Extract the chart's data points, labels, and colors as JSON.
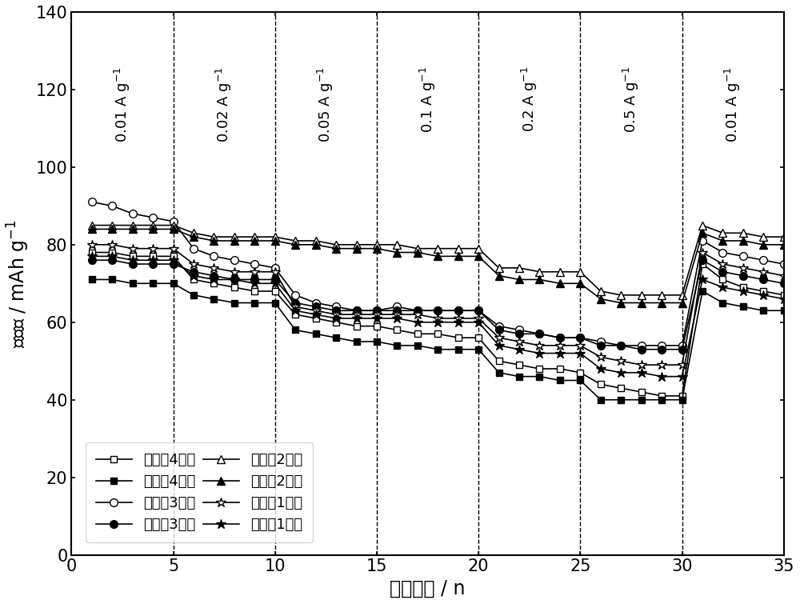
{
  "xlabel": "循环圈数 / n",
  "ylabel": "比容量 / mAh g-1",
  "ylim": [
    0,
    140
  ],
  "xlim": [
    0,
    35
  ],
  "yticks": [
    0,
    20,
    40,
    60,
    80,
    100,
    120,
    140
  ],
  "xticks": [
    0,
    5,
    10,
    15,
    20,
    25,
    30,
    35
  ],
  "vlines": [
    5,
    10,
    15,
    20,
    25,
    30
  ],
  "rate_labels": [
    {
      "x": 2.5,
      "text": "0.01 A g-1",
      "rotation": 90
    },
    {
      "x": 7.5,
      "text": "0.02 A g-1",
      "rotation": 90
    },
    {
      "x": 12.5,
      "text": "0.05 A g-1",
      "rotation": 90
    },
    {
      "x": 17.5,
      "text": "0.1 A g-1",
      "rotation": 90
    },
    {
      "x": 22.5,
      "text": "0.2 A g-1",
      "rotation": 90
    },
    {
      "x": 27.5,
      "text": "0.5 A g-1",
      "rotation": 90
    },
    {
      "x": 32.5,
      "text": "0.01 A g-1",
      "rotation": 90
    }
  ],
  "series": {
    "ex4_charge": {
      "x": [
        1,
        2,
        3,
        4,
        5,
        6,
        7,
        8,
        9,
        10,
        11,
        12,
        13,
        14,
        15,
        16,
        17,
        18,
        19,
        20,
        21,
        22,
        23,
        24,
        25,
        26,
        27,
        28,
        29,
        30,
        31,
        32,
        33,
        34,
        35
      ],
      "y": [
        78,
        78,
        77,
        77,
        77,
        71,
        70,
        69,
        68,
        68,
        62,
        61,
        60,
        59,
        59,
        58,
        57,
        57,
        56,
        56,
        50,
        49,
        48,
        48,
        47,
        44,
        43,
        42,
        41,
        41,
        75,
        71,
        69,
        68,
        67
      ],
      "marker": "s",
      "filled": false,
      "label": "实施例4充电"
    },
    "ex4_discharge": {
      "x": [
        1,
        2,
        3,
        4,
        5,
        6,
        7,
        8,
        9,
        10,
        11,
        12,
        13,
        14,
        15,
        16,
        17,
        18,
        19,
        20,
        21,
        22,
        23,
        24,
        25,
        26,
        27,
        28,
        29,
        30,
        31,
        32,
        33,
        34,
        35
      ],
      "y": [
        71,
        71,
        70,
        70,
        70,
        67,
        66,
        65,
        65,
        65,
        58,
        57,
        56,
        55,
        55,
        54,
        54,
        53,
        53,
        53,
        47,
        46,
        46,
        45,
        45,
        40,
        40,
        40,
        40,
        40,
        68,
        65,
        64,
        63,
        63
      ],
      "marker": "s",
      "filled": true,
      "label": "实施例4放电"
    },
    "ex3_charge": {
      "x": [
        1,
        2,
        3,
        4,
        5,
        6,
        7,
        8,
        9,
        10,
        11,
        12,
        13,
        14,
        15,
        16,
        17,
        18,
        19,
        20,
        21,
        22,
        23,
        24,
        25,
        26,
        27,
        28,
        29,
        30,
        31,
        32,
        33,
        34,
        35
      ],
      "y": [
        91,
        90,
        88,
        87,
        86,
        79,
        77,
        76,
        75,
        74,
        67,
        65,
        64,
        63,
        63,
        64,
        63,
        63,
        63,
        63,
        59,
        58,
        57,
        56,
        56,
        55,
        54,
        54,
        54,
        54,
        81,
        78,
        77,
        76,
        75
      ],
      "marker": "o",
      "filled": false,
      "label": "实施例3充电"
    },
    "ex3_discharge": {
      "x": [
        1,
        2,
        3,
        4,
        5,
        6,
        7,
        8,
        9,
        10,
        11,
        12,
        13,
        14,
        15,
        16,
        17,
        18,
        19,
        20,
        21,
        22,
        23,
        24,
        25,
        26,
        27,
        28,
        29,
        30,
        31,
        32,
        33,
        34,
        35
      ],
      "y": [
        76,
        76,
        75,
        75,
        75,
        73,
        72,
        71,
        71,
        71,
        65,
        64,
        63,
        63,
        63,
        63,
        63,
        63,
        63,
        63,
        58,
        57,
        57,
        56,
        56,
        54,
        54,
        53,
        53,
        53,
        76,
        73,
        72,
        71,
        70
      ],
      "marker": "o",
      "filled": true,
      "label": "实施例3放电"
    },
    "ex2_charge": {
      "x": [
        1,
        2,
        3,
        4,
        5,
        6,
        7,
        8,
        9,
        10,
        11,
        12,
        13,
        14,
        15,
        16,
        17,
        18,
        19,
        20,
        21,
        22,
        23,
        24,
        25,
        26,
        27,
        28,
        29,
        30,
        31,
        32,
        33,
        34,
        35
      ],
      "y": [
        85,
        85,
        85,
        85,
        85,
        83,
        82,
        82,
        82,
        82,
        81,
        81,
        80,
        80,
        80,
        80,
        79,
        79,
        79,
        79,
        74,
        74,
        73,
        73,
        73,
        68,
        67,
        67,
        67,
        67,
        85,
        83,
        83,
        82,
        82
      ],
      "marker": "^",
      "filled": false,
      "label": "实施例2充电"
    },
    "ex2_discharge": {
      "x": [
        1,
        2,
        3,
        4,
        5,
        6,
        7,
        8,
        9,
        10,
        11,
        12,
        13,
        14,
        15,
        16,
        17,
        18,
        19,
        20,
        21,
        22,
        23,
        24,
        25,
        26,
        27,
        28,
        29,
        30,
        31,
        32,
        33,
        34,
        35
      ],
      "y": [
        84,
        84,
        84,
        84,
        84,
        82,
        81,
        81,
        81,
        81,
        80,
        80,
        79,
        79,
        79,
        78,
        78,
        77,
        77,
        77,
        72,
        71,
        71,
        70,
        70,
        66,
        65,
        65,
        65,
        65,
        83,
        81,
        81,
        80,
        80
      ],
      "marker": "^",
      "filled": true,
      "label": "实施例2放电"
    },
    "ex1_charge": {
      "x": [
        1,
        2,
        3,
        4,
        5,
        6,
        7,
        8,
        9,
        10,
        11,
        12,
        13,
        14,
        15,
        16,
        17,
        18,
        19,
        20,
        21,
        22,
        23,
        24,
        25,
        26,
        27,
        28,
        29,
        30,
        31,
        32,
        33,
        34,
        35
      ],
      "y": [
        80,
        80,
        79,
        79,
        79,
        75,
        74,
        73,
        73,
        73,
        64,
        63,
        62,
        62,
        62,
        62,
        62,
        61,
        61,
        61,
        56,
        55,
        54,
        54,
        54,
        51,
        50,
        49,
        49,
        49,
        78,
        75,
        74,
        73,
        72
      ],
      "marker": "*",
      "filled": false,
      "label": "实施例1充电"
    },
    "ex1_discharge": {
      "x": [
        1,
        2,
        3,
        4,
        5,
        6,
        7,
        8,
        9,
        10,
        11,
        12,
        13,
        14,
        15,
        16,
        17,
        18,
        19,
        20,
        21,
        22,
        23,
        24,
        25,
        26,
        27,
        28,
        29,
        30,
        31,
        32,
        33,
        34,
        35
      ],
      "y": [
        77,
        77,
        76,
        76,
        76,
        72,
        71,
        71,
        70,
        70,
        63,
        62,
        61,
        61,
        61,
        61,
        60,
        60,
        60,
        60,
        54,
        53,
        52,
        52,
        52,
        48,
        47,
        47,
        46,
        46,
        71,
        69,
        68,
        67,
        66
      ],
      "marker": "*",
      "filled": true,
      "label": "实施例1放电"
    }
  },
  "legend_order": [
    "ex4_charge",
    "ex4_discharge",
    "ex3_charge",
    "ex3_discharge",
    "ex2_charge",
    "ex2_discharge",
    "ex1_charge",
    "ex1_discharge"
  ],
  "fontsize_label": 17,
  "fontsize_tick": 15,
  "fontsize_legend": 13,
  "fontsize_rate": 13
}
